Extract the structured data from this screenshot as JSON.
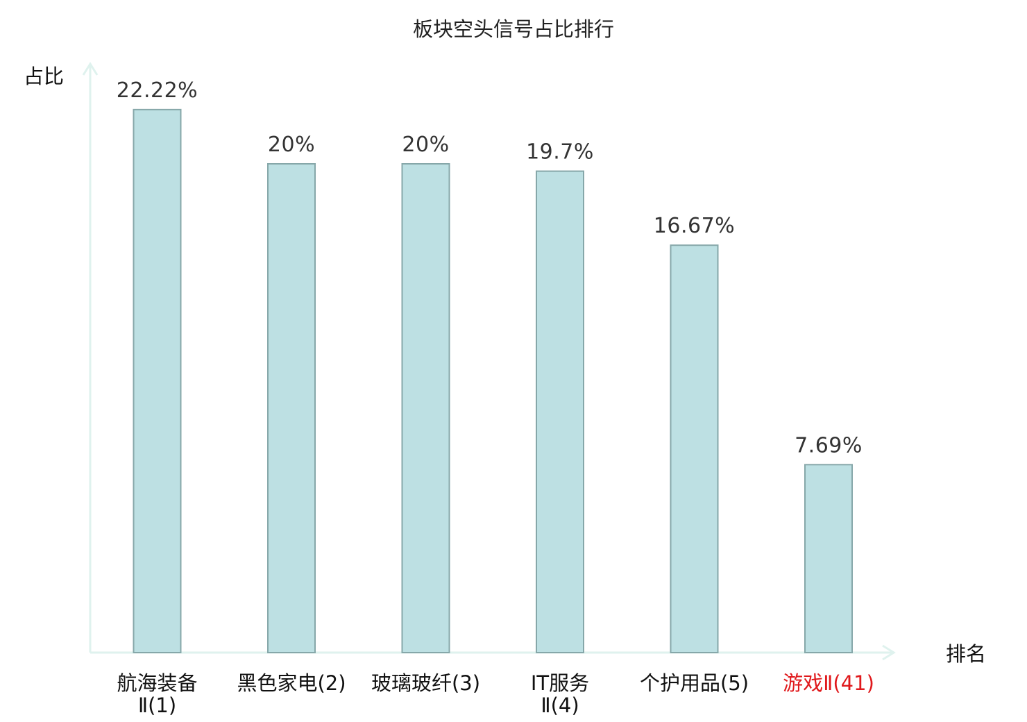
{
  "chart_data": {
    "type": "bar",
    "title": "板块空头信号占比排行",
    "ylabel": "占比",
    "xlabel": "排名",
    "unit": "%",
    "ylim": [
      0,
      25
    ],
    "grid": false,
    "legend": "none",
    "categories": [
      {
        "name": "航海装备Ⅱ",
        "rank": "(1)",
        "lines": [
          "航海装备",
          "Ⅱ(1)"
        ],
        "highlight": false
      },
      {
        "name": "黑色家电",
        "rank": "(2)",
        "lines": [
          "黑色家电(2)"
        ],
        "highlight": false
      },
      {
        "name": "玻璃玻纤",
        "rank": "(3)",
        "lines": [
          "玻璃玻纤(3)"
        ],
        "highlight": false
      },
      {
        "name": "IT服务Ⅱ",
        "rank": "(4)",
        "lines": [
          "IT服务",
          "Ⅱ(4)"
        ],
        "highlight": false
      },
      {
        "name": "个护用品",
        "rank": "(5)",
        "lines": [
          "个护用品(5)"
        ],
        "highlight": false
      },
      {
        "name": "游戏Ⅱ",
        "rank": "(41)",
        "lines": [
          "游戏Ⅱ(41)"
        ],
        "highlight": true
      }
    ],
    "values": [
      22.22,
      20,
      20,
      19.7,
      16.67,
      7.69
    ],
    "value_labels": [
      "22.22%",
      "20%",
      "20%",
      "19.7%",
      "16.67%",
      "7.69%"
    ],
    "colors": {
      "bar_fill": "#bde0e3",
      "bar_stroke": "#86a7a9",
      "axis": "#dff2ee",
      "highlight_text": "#e0191c"
    }
  }
}
